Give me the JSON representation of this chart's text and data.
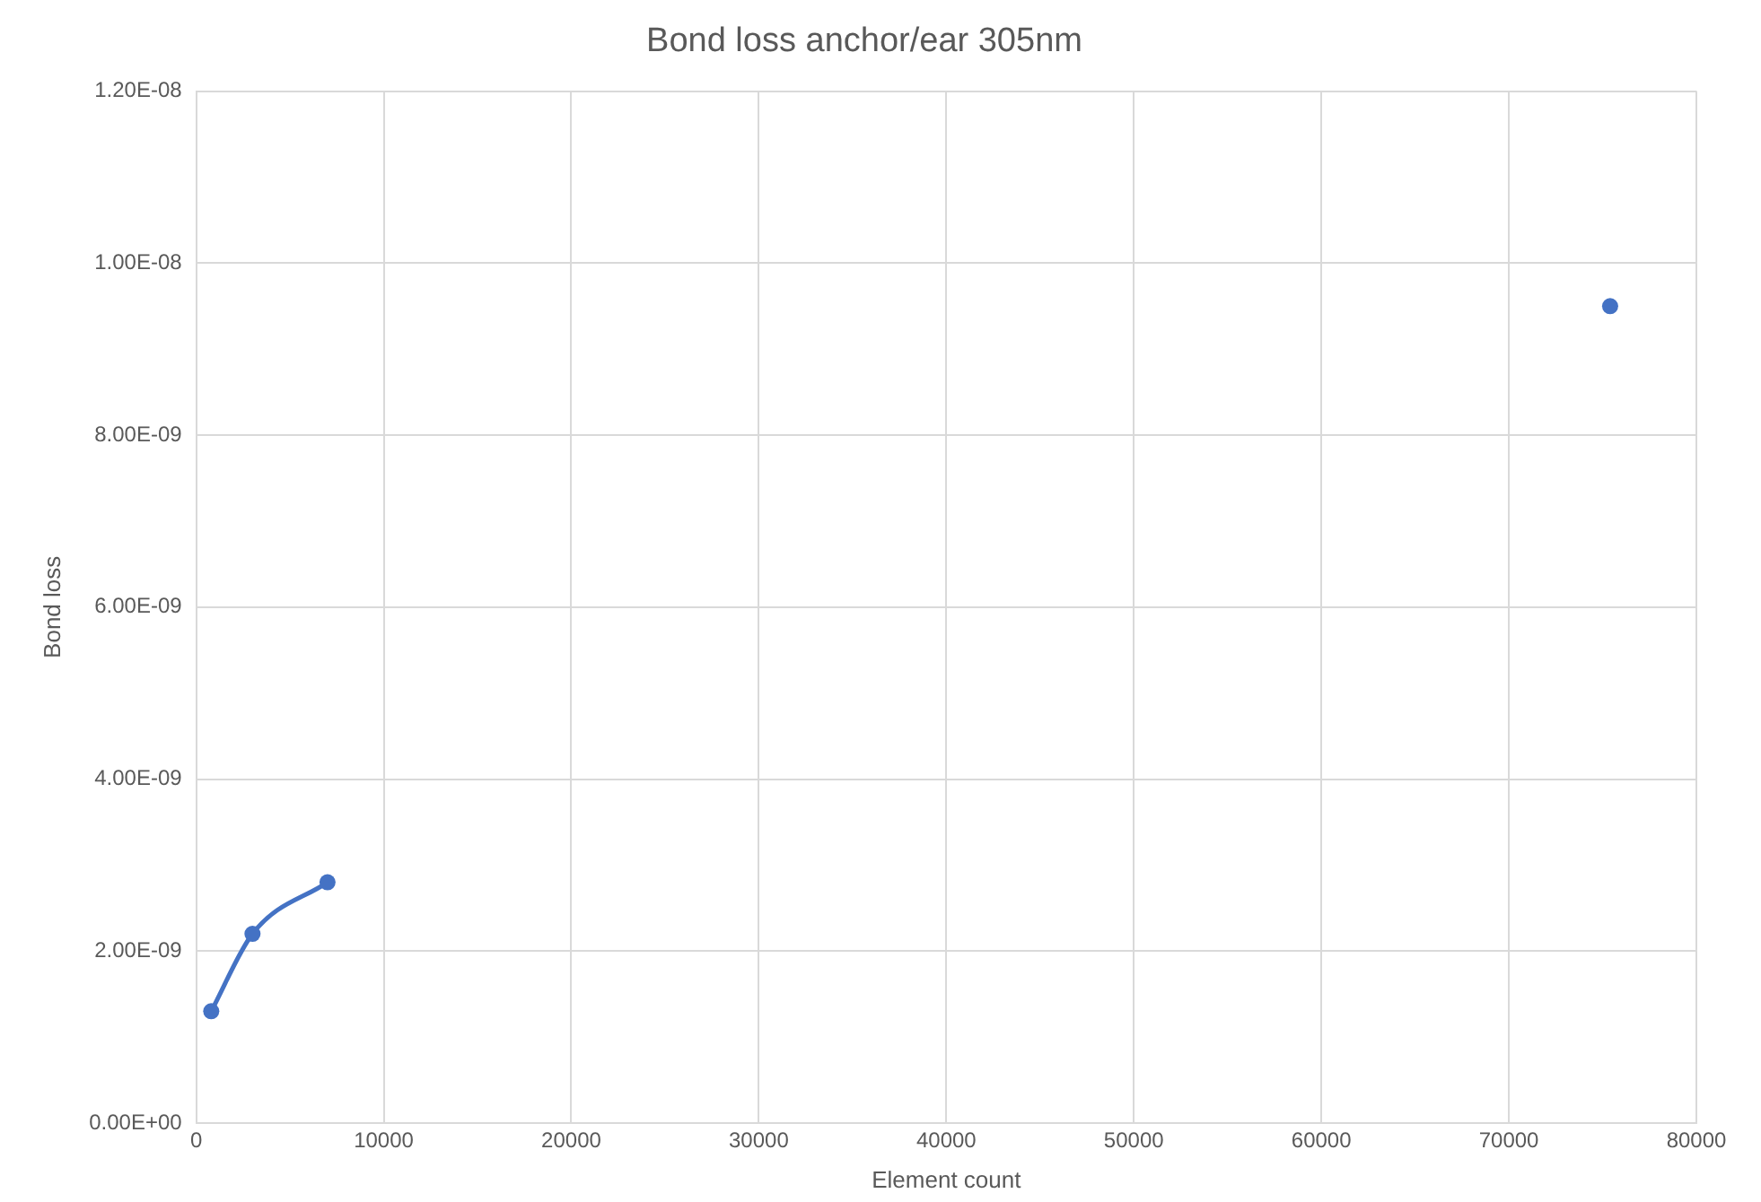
{
  "chart_data": {
    "type": "line",
    "title": "Bond loss anchor/ear 305nm",
    "xlabel": "Element count",
    "ylabel": "Bond loss",
    "series": [
      {
        "color": "#4472c4",
        "x": [
          800,
          3000,
          7000
        ],
        "values": [
          1.3e-09,
          2.2e-09,
          2.8e-09
        ]
      },
      {
        "type": "scatter",
        "color": "#4472c4",
        "x": [
          75400
        ],
        "values": [
          9.5e-09
        ]
      }
    ],
    "xlim": [
      0,
      80000
    ],
    "xticks": [
      0,
      10000,
      20000,
      30000,
      40000,
      50000,
      60000,
      70000,
      80000
    ],
    "ylim": [
      0,
      1.2e-08
    ],
    "yticks": [
      {
        "value": 0,
        "label": "0.00E+00"
      },
      {
        "value": 2e-09,
        "label": "2.00E-09"
      },
      {
        "value": 4e-09,
        "label": "4.00E-09"
      },
      {
        "value": 6e-09,
        "label": "6.00E-09"
      },
      {
        "value": 8e-09,
        "label": "8.00E-09"
      },
      {
        "value": 1e-08,
        "label": "1.00E-08"
      },
      {
        "value": 1.2e-08,
        "label": "1.20E-08"
      }
    ],
    "grid": true,
    "legend": false,
    "marker": "circle",
    "line_style": "solid"
  }
}
